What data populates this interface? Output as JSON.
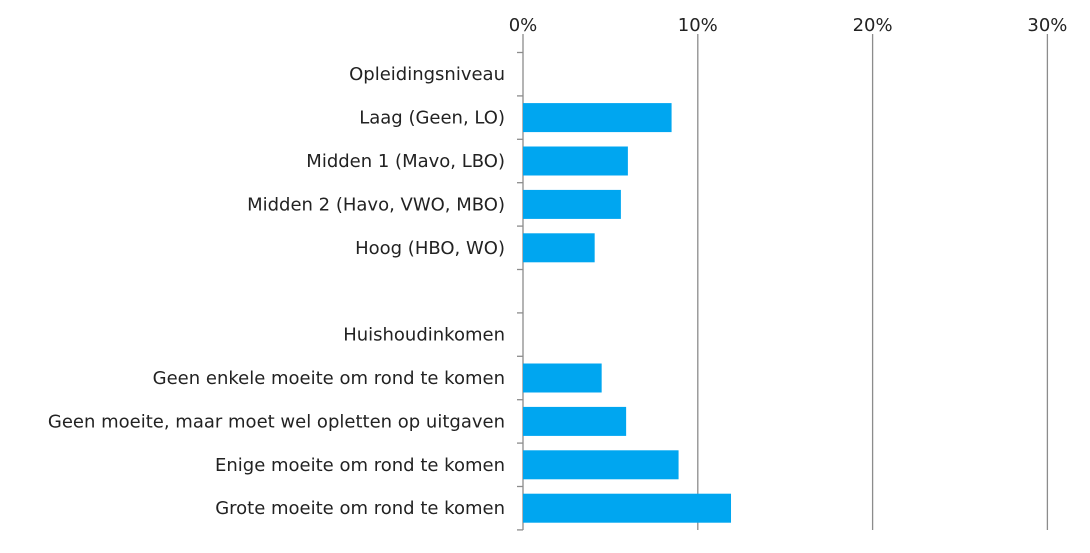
{
  "chart_data": {
    "type": "bar",
    "orientation": "horizontal",
    "x_ticks": [
      "0%",
      "10%",
      "20%",
      "30%"
    ],
    "xlim": [
      0,
      30
    ],
    "x_unit": "%",
    "grid": "vertical, x-axis on top",
    "bar_color": "#00A6F0",
    "rows": [
      {
        "label": "Opleidingsniveau",
        "value": null
      },
      {
        "label": "Laag (Geen, LO)",
        "value": 8.5
      },
      {
        "label": "Midden 1 (Mavo, LBO)",
        "value": 6.0
      },
      {
        "label": "Midden 2 (Havo, VWO, MBO)",
        "value": 5.6
      },
      {
        "label": "Hoog (HBO, WO)",
        "value": 4.1
      },
      {
        "label": "",
        "value": null
      },
      {
        "label": "Huishoudinkomen",
        "value": null
      },
      {
        "label": "Geen enkele moeite om rond te komen",
        "value": 4.5
      },
      {
        "label": "Geen moeite, maar moet wel opletten op uitgaven",
        "value": 5.9
      },
      {
        "label": "Enige moeite om rond te komen",
        "value": 8.9
      },
      {
        "label": "Grote moeite om rond te komen",
        "value": 11.9
      }
    ]
  }
}
